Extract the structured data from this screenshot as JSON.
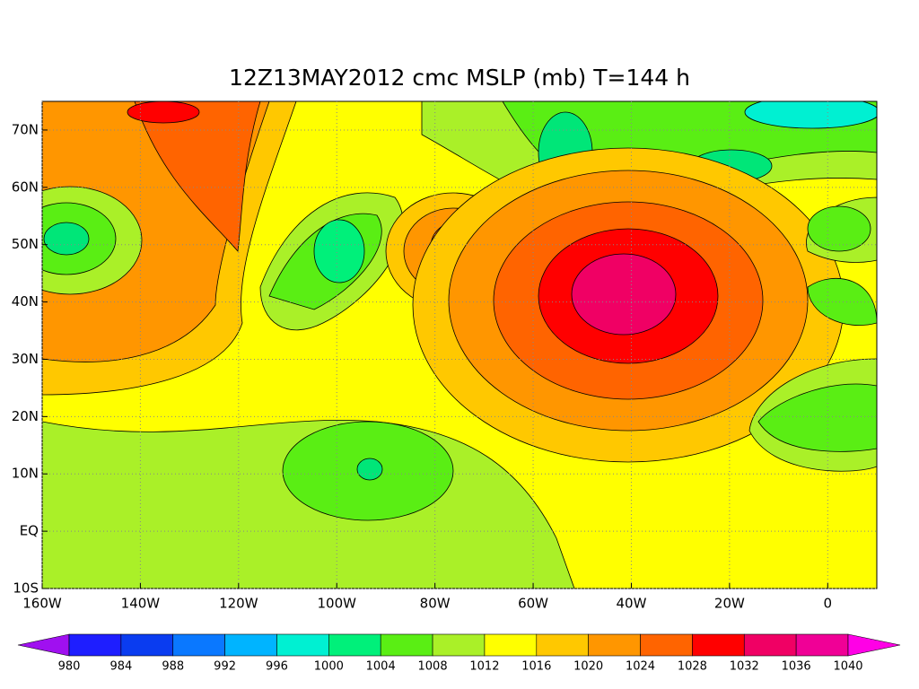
{
  "title": "12Z13MAY2012 cmc MSLP (mb) T=144 h",
  "map": {
    "xlim": [
      -160,
      10
    ],
    "ylim": [
      -10,
      75
    ],
    "grid": true,
    "xticks": [
      {
        "value": -160,
        "label": "160W"
      },
      {
        "value": -140,
        "label": "140W"
      },
      {
        "value": -120,
        "label": "120W"
      },
      {
        "value": -100,
        "label": "100W"
      },
      {
        "value": -80,
        "label": "80W"
      },
      {
        "value": -60,
        "label": "60W"
      },
      {
        "value": -40,
        "label": "40W"
      },
      {
        "value": -20,
        "label": "20W"
      },
      0
    ],
    "yticks": [
      {
        "value": -10,
        "label": "10S"
      },
      {
        "value": 0,
        "label": "EQ"
      },
      {
        "value": 10,
        "label": "10N"
      },
      {
        "value": 20,
        "label": "20N"
      },
      {
        "value": 30,
        "label": "30N"
      },
      {
        "value": 40,
        "label": "40N"
      },
      {
        "value": 50,
        "label": "50N"
      },
      {
        "value": 60,
        "label": "60N"
      },
      {
        "value": 70,
        "label": "70N"
      }
    ]
  },
  "colorbar": {
    "levels": [
      980,
      984,
      988,
      992,
      996,
      1000,
      1004,
      1008,
      1012,
      1016,
      1020,
      1024,
      1028,
      1032,
      1036,
      1040
    ],
    "colors": [
      "#a010f0",
      "#1e1eff",
      "#0a3cf0",
      "#0a78ff",
      "#00b4ff",
      "#00f0d2",
      "#00f07a",
      "#5aee14",
      "#aaf028",
      "#ffff00",
      "#ffc800",
      "#ff9600",
      "#ff6400",
      "#ff0000",
      "#f00064",
      "#f00096",
      "#ff00e6"
    ]
  }
}
